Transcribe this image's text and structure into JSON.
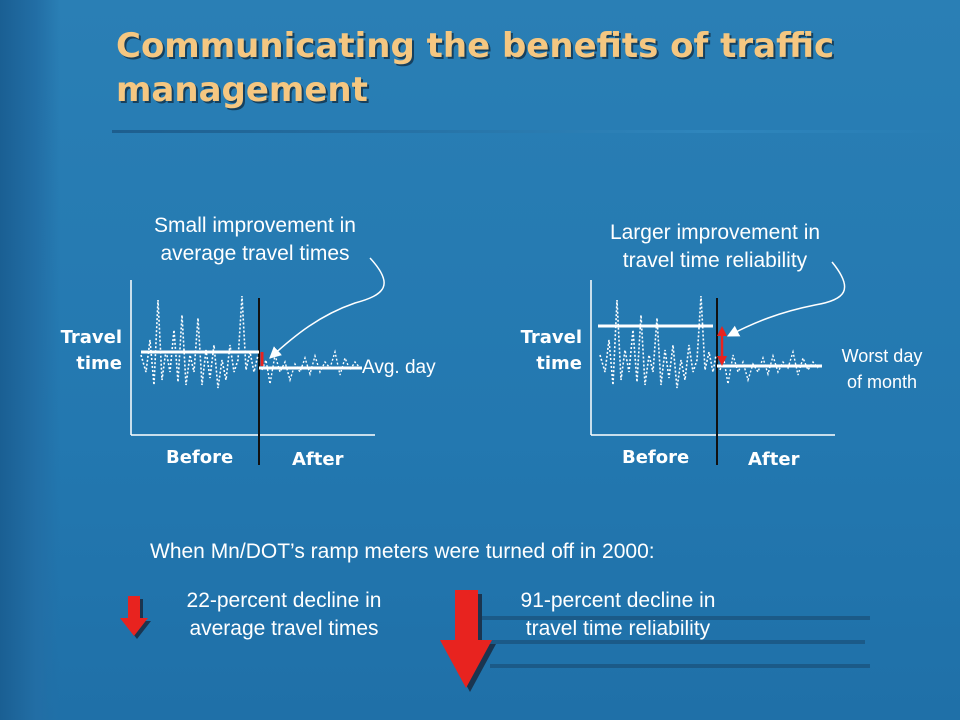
{
  "title": "Communicating the benefits of traffic management",
  "left_panel": {
    "caption_line1": "Small improvement in",
    "caption_line2": "average travel times",
    "ylabel_line1": "Travel",
    "ylabel_line2": "time",
    "before_label": "Before",
    "after_label": "After",
    "marker_label": "Avg. day"
  },
  "right_panel": {
    "caption_line1": "Larger improvement in",
    "caption_line2": "travel time reliability",
    "ylabel_line1": "Travel",
    "ylabel_line2": "time",
    "before_label": "Before",
    "after_label": "After",
    "marker_line1": "Worst day",
    "marker_line2": "of month"
  },
  "summary": {
    "heading": "When Mn/DOT’s ramp meters were turned off in 2000:",
    "stat1_line1": "22-percent decline in",
    "stat1_line2": "average travel times",
    "stat2_line1": "91-percent decline in",
    "stat2_line2": "travel time reliability"
  },
  "colors": {
    "title": "#f5c781",
    "text": "#ffffff",
    "arrow_red": "#e8231f",
    "background": "#2a7fb5"
  },
  "icons": [
    "small-down-arrow-icon",
    "large-down-arrow-icon",
    "callout-arrow-icon"
  ]
}
